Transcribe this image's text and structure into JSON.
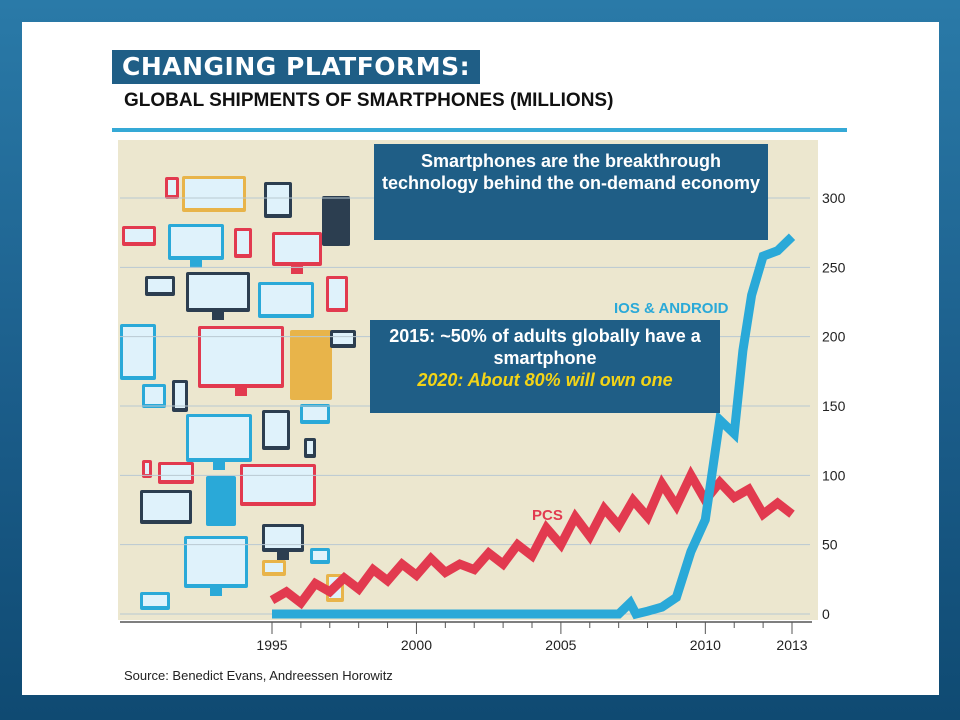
{
  "slide": {
    "title": "CHANGING PLATFORMS:",
    "subtitle": "GLOBAL SHIPMENTS OF SMARTPHONES (MILLIONS)",
    "source": "Source: Benedict Evans, Andreessen Horowitz",
    "callout_1": "Smartphones are the breakthrough technology behind the on-demand economy",
    "callout_2_line1": "2015: ~50% of adults globally have a smartphone",
    "callout_2_line2": "2020: About 80% will own one"
  },
  "chart_data": {
    "type": "line",
    "title": "GLOBAL SHIPMENTS OF SMARTPHONES (MILLIONS)",
    "x_tick_labels": [
      "1995",
      "2000",
      "2005",
      "2010",
      "2013"
    ],
    "y_tick_labels": [
      "0",
      "50",
      "100",
      "150",
      "200",
      "250",
      "300"
    ],
    "xlim": [
      1995,
      2013
    ],
    "ylim": [
      0,
      300
    ],
    "grid": true,
    "series": [
      {
        "name": "PCS",
        "color": "#e23a4f",
        "x": [
          1995,
          1995.5,
          1996,
          1996.5,
          1997,
          1997.5,
          1998,
          1998.5,
          1999,
          1999.5,
          2000,
          2000.5,
          2001,
          2001.5,
          2002,
          2002.5,
          2003,
          2003.5,
          2004,
          2004.5,
          2005,
          2005.5,
          2006,
          2006.5,
          2007,
          2007.5,
          2008,
          2008.5,
          2009,
          2009.5,
          2010,
          2010.5,
          2011,
          2011.5,
          2012,
          2012.5,
          2013
        ],
        "values": [
          10,
          16,
          8,
          22,
          16,
          26,
          18,
          32,
          24,
          36,
          28,
          40,
          30,
          36,
          32,
          44,
          36,
          50,
          42,
          62,
          50,
          70,
          56,
          76,
          64,
          82,
          70,
          94,
          78,
          100,
          82,
          95,
          84,
          90,
          72,
          80,
          72
        ]
      },
      {
        "name": "IOS & ANDROID",
        "color": "#2aa9d8",
        "x": [
          1995,
          1996,
          1997,
          1998,
          1999,
          2000,
          2001,
          2002,
          2003,
          2004,
          2005,
          2006,
          2007,
          2007.4,
          2007.6,
          2008,
          2008.5,
          2009,
          2009.5,
          2010,
          2010.5,
          2011,
          2011.3,
          2011.6,
          2012,
          2012.5,
          2013
        ],
        "values": [
          0,
          0,
          0,
          0,
          0,
          0,
          0,
          0,
          0,
          0,
          0,
          0,
          0,
          8,
          0,
          2,
          5,
          12,
          45,
          68,
          140,
          130,
          190,
          230,
          258,
          262,
          272
        ]
      }
    ],
    "annotations": [
      "IOS & ANDROID",
      "PCS"
    ]
  }
}
